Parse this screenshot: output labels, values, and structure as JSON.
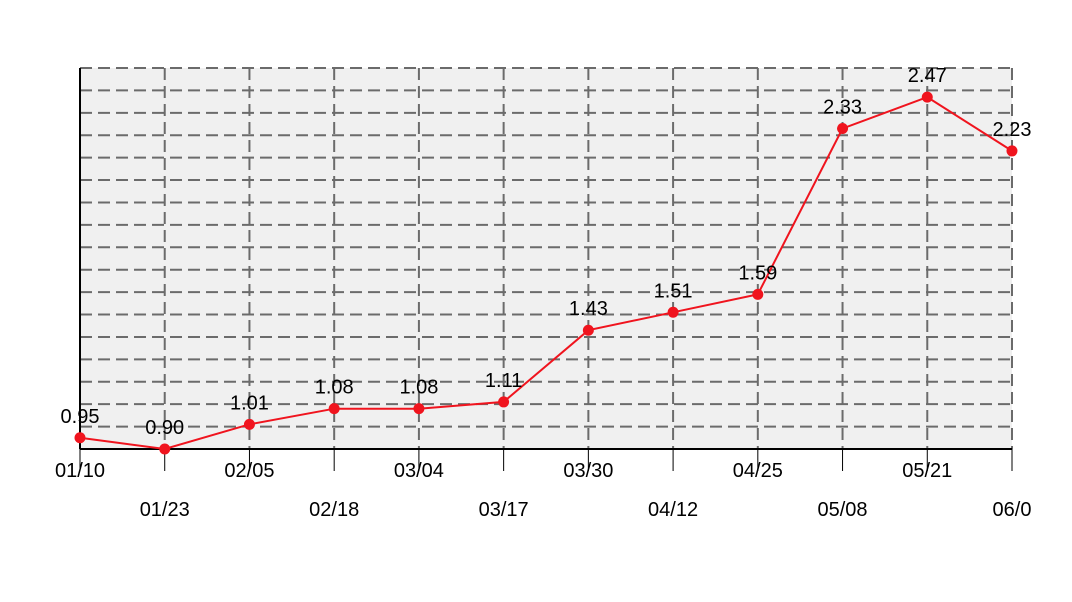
{
  "chart_data": {
    "type": "line",
    "title": "",
    "xlabel": "",
    "ylabel": "",
    "categories": [
      "01/10",
      "01/23",
      "02/05",
      "02/18",
      "03/04",
      "03/17",
      "03/30",
      "04/12",
      "04/25",
      "05/08",
      "05/21",
      "06/0"
    ],
    "series": [
      {
        "values": [
          0.95,
          0.9,
          1.01,
          1.08,
          1.08,
          1.11,
          1.43,
          1.51,
          1.59,
          2.33,
          2.47,
          2.23
        ]
      }
    ],
    "ylim": [
      0.9,
      2.6
    ],
    "grid": true,
    "colors": {
      "line": "#f0141e",
      "plot_bg": "#f0f0f0",
      "grid": "#6b6b6b"
    }
  }
}
